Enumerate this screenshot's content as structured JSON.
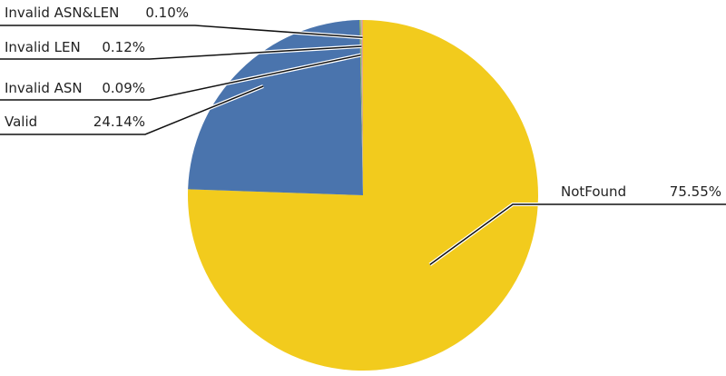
{
  "chart_data": {
    "type": "pie",
    "start": "top",
    "direction": "clockwise",
    "slices": [
      {
        "label": "NotFound",
        "value": 75.55,
        "display": "75.55%",
        "color": "#f2cb1d"
      },
      {
        "label": "Valid",
        "value": 24.14,
        "display": "24.14%",
        "color": "#4a74ad"
      },
      {
        "label": "Invalid ASN",
        "value": 0.09,
        "display": "0.09%",
        "color": "#8fb33c"
      },
      {
        "label": "Invalid LEN",
        "value": 0.12,
        "display": "0.12%",
        "color": "#a9a9a9"
      },
      {
        "label": "Invalid ASN&LEN",
        "value": 0.1,
        "display": "0.10%",
        "color": "#f0a07c"
      }
    ]
  }
}
